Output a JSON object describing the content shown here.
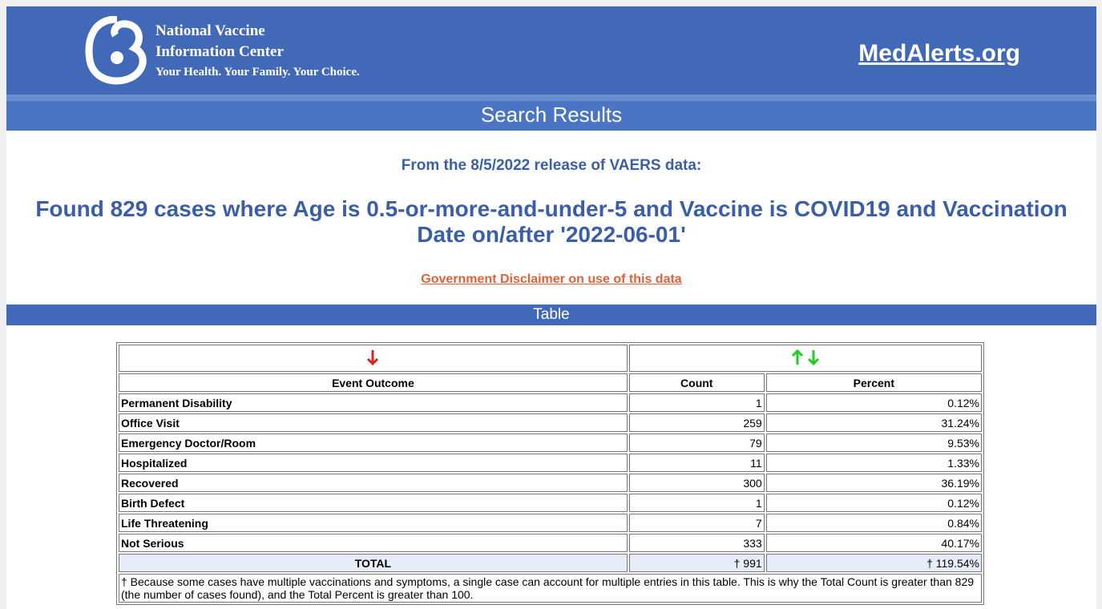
{
  "header": {
    "org_line1": "National Vaccine",
    "org_line2": "Information Center",
    "tagline": "Your Health. Your Family. Your Choice.",
    "site": "MedAlerts.org",
    "section": "Search Results"
  },
  "intro": {
    "release": "From the 8/5/2022 release of VAERS data:",
    "found": "Found 829 cases where Age is 0.5-or-more-and-under-5 and Vaccine is COVID19 and Vaccination Date on/after '2022-06-01'",
    "disclaimer": "Government Disclaimer on use of this data"
  },
  "table": {
    "bar": "Table",
    "columns": [
      "Event Outcome",
      "Count",
      "Percent"
    ],
    "rows": [
      [
        "Permanent Disability",
        "1",
        "0.12%"
      ],
      [
        "Office Visit",
        "259",
        "31.24%"
      ],
      [
        "Emergency Doctor/Room",
        "79",
        "9.53%"
      ],
      [
        "Hospitalized",
        "11",
        "1.33%"
      ],
      [
        "Recovered",
        "300",
        "36.19%"
      ],
      [
        "Birth Defect",
        "1",
        "0.12%"
      ],
      [
        "Life Threatening",
        "7",
        "0.84%"
      ],
      [
        "Not Serious",
        "333",
        "40.17%"
      ]
    ],
    "total": [
      "TOTAL",
      "† 991",
      "† 119.54%"
    ],
    "footnote": "† Because some cases have multiple vaccinations and symptoms, a single case can account for multiple entries in this table. This is why the Total Count is greater than 829 (the number of cases found), and the Total Percent is greater than 100."
  }
}
